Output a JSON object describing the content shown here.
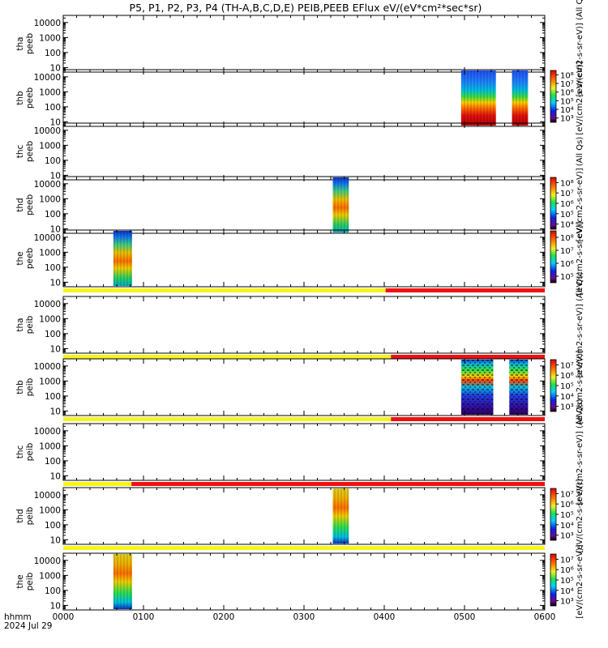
{
  "title": "P5, P1, P2, P3, P4 (TH-A,B,C,D,E) PEIB,PEEB EFlux eV/(eV*cm²*sec*sr)",
  "xaxis": {
    "label_line1": "hhmm",
    "label_line2": "2024 Jul 29",
    "ticks": [
      "0000",
      "0100",
      "0200",
      "0300",
      "0400",
      "0500",
      "0600"
    ],
    "range_minutes": [
      0,
      360
    ]
  },
  "colors": {
    "flag_good": "#f5f51e",
    "flag_bad": "#ee1111"
  },
  "chart_data": {
    "type": "heatmap",
    "yscale": "log",
    "yticks": [
      "10",
      "100",
      "1000",
      "10000"
    ],
    "ylim": [
      5,
      30000
    ],
    "panels": [
      {
        "id": "tha-peeb",
        "label_top": "tha",
        "label_bottom": "peeb",
        "colorbar": null,
        "right_label": "[eV/(cm2-s-sr-eV)]  (All Qs)",
        "blocks": []
      },
      {
        "id": "thb-peeb",
        "label_top": "thb",
        "label_bottom": "peeb",
        "colorbar": [
          "10³",
          "10⁴",
          "10⁵",
          "10⁶",
          "10⁷",
          "10⁸"
        ],
        "right_label": "[eV/(cm2-s-sr-eV)]",
        "blocks": [
          {
            "start": 297.5,
            "end": 323.5,
            "style": "electron_hi"
          },
          {
            "start": 335.5,
            "end": 347.5,
            "style": "electron_hi"
          }
        ]
      },
      {
        "id": "thc-peeb",
        "label_top": "thc",
        "label_bottom": "peeb",
        "colorbar": null,
        "right_label": "(All Qs)",
        "blocks": []
      },
      {
        "id": "thd-peeb",
        "label_top": "thd",
        "label_bottom": "peeb",
        "colorbar": [
          "10⁴",
          "10⁵",
          "10⁶",
          "10⁷",
          "10⁸"
        ],
        "right_label": "[eV/(cm2-s-sr-eV)]",
        "blocks": [
          {
            "start": 201.5,
            "end": 213.5,
            "style": "electron_lo"
          }
        ]
      },
      {
        "id": "the-peeb",
        "label_top": "the",
        "label_bottom": "peeb",
        "colorbar": [
          "10⁵",
          "10⁶",
          "10⁷",
          "10⁸"
        ],
        "right_label": "[eV/(cm2-s-sr-eV)]",
        "blocks": [
          {
            "start": 37.5,
            "end": 51.5,
            "style": "electron_lo"
          }
        ],
        "flag_change_min": 241
      },
      {
        "id": "tha-peib",
        "label_top": "tha",
        "label_bottom": "peib",
        "colorbar": null,
        "right_label": "[eV/(cm2-s-sr-eV)]  (All Qs)",
        "blocks": [],
        "flag_change_min": 245
      },
      {
        "id": "thb-peib",
        "label_top": "thb",
        "label_bottom": "peib",
        "colorbar": [
          "10³",
          "10⁴",
          "10⁵",
          "10⁶",
          "10⁷"
        ],
        "right_label": "[eV/(cm2-s-sr-eV)]",
        "blocks": [
          {
            "start": 297.5,
            "end": 321.5,
            "style": "ion_hi"
          },
          {
            "start": 333.5,
            "end": 347.5,
            "style": "ion_hi"
          }
        ],
        "flag_change_min": 245
      },
      {
        "id": "thc-peib",
        "label_top": "thc",
        "label_bottom": "peib",
        "colorbar": null,
        "right_label": "[eV/(cm2-s-sr-eV)]  (All Qs)",
        "blocks": [],
        "flag_change_min": 51
      },
      {
        "id": "thd-peib",
        "label_top": "thd",
        "label_bottom": "peib",
        "colorbar": [
          "10³",
          "10⁴",
          "10⁵",
          "10⁶",
          "10⁷"
        ],
        "right_label": "[eV/(cm2-s-sr-eV)]",
        "blocks": [
          {
            "start": 201.5,
            "end": 213.5,
            "style": "ion_lo"
          }
        ],
        "flag_change_min": 360
      },
      {
        "id": "the-peib",
        "label_top": "the",
        "label_bottom": "peib",
        "colorbar": [
          "10³",
          "10⁴",
          "10⁵",
          "10⁶",
          "10⁷"
        ],
        "right_label": "[eV/(cm2-s-sr-eV)]",
        "blocks": [
          {
            "start": 37.5,
            "end": 51.5,
            "style": "ion_lo"
          }
        ]
      }
    ]
  }
}
